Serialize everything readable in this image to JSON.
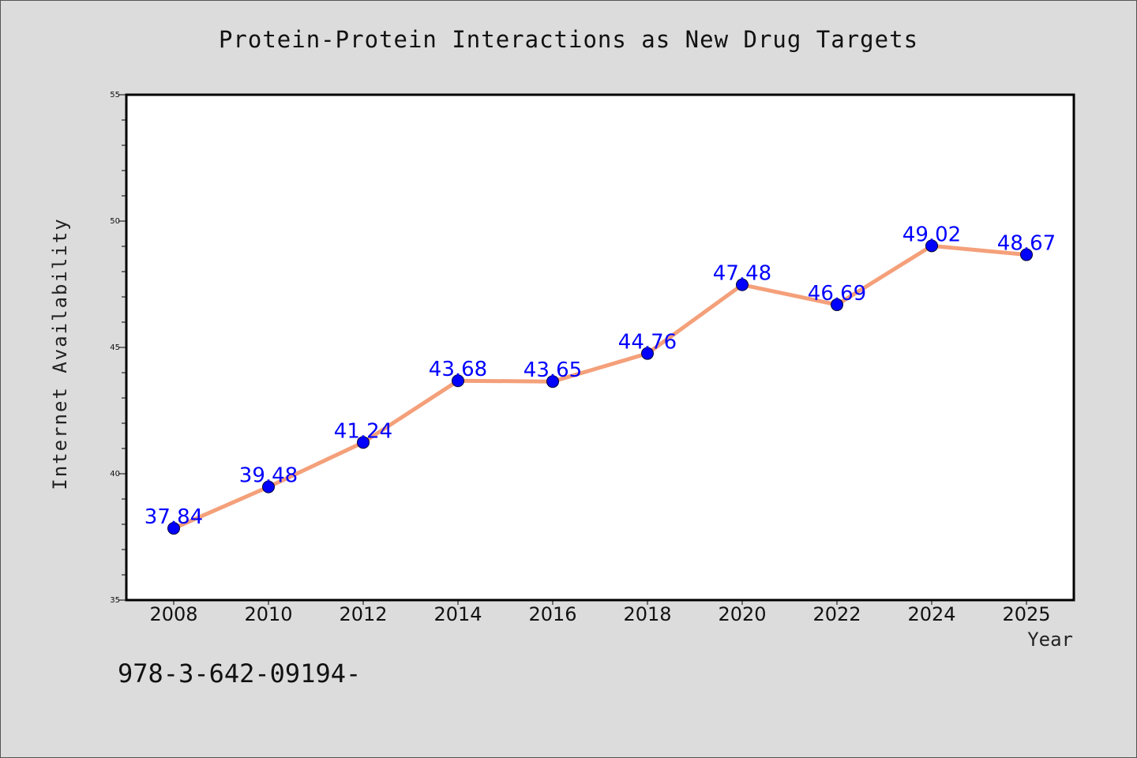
{
  "chart_data": {
    "type": "line",
    "title": "Protein-Protein Interactions as New Drug Targets",
    "xlabel": "Year",
    "ylabel": "Internet Availability",
    "categories": [
      "2008",
      "2010",
      "2012",
      "2014",
      "2016",
      "2018",
      "2020",
      "2022",
      "2024",
      "2025"
    ],
    "series": [
      {
        "values": [
          37.84,
          39.48,
          41.24,
          43.68,
          43.65,
          44.76,
          47.48,
          46.69,
          49.02,
          48.67
        ],
        "line_color": "#f4a07a",
        "marker_color": "#0000ff"
      }
    ],
    "data_labels": [
      "37.84",
      "39.48",
      "41.24",
      "43.68",
      "43.65",
      "44.76",
      "47.48",
      "46.69",
      "49.02",
      "48.67"
    ],
    "ylim": [
      35,
      55
    ],
    "yticks": [
      35,
      40,
      45,
      50,
      55
    ],
    "grid": false,
    "legend": "none"
  },
  "footer": {
    "code": "978-3-642-09194-"
  },
  "colors": {
    "background": "#dcdcdc",
    "plot_background": "#ffffff",
    "line": "#f4a07a",
    "marker": "#0000ff",
    "data_label": "#0000ff"
  }
}
